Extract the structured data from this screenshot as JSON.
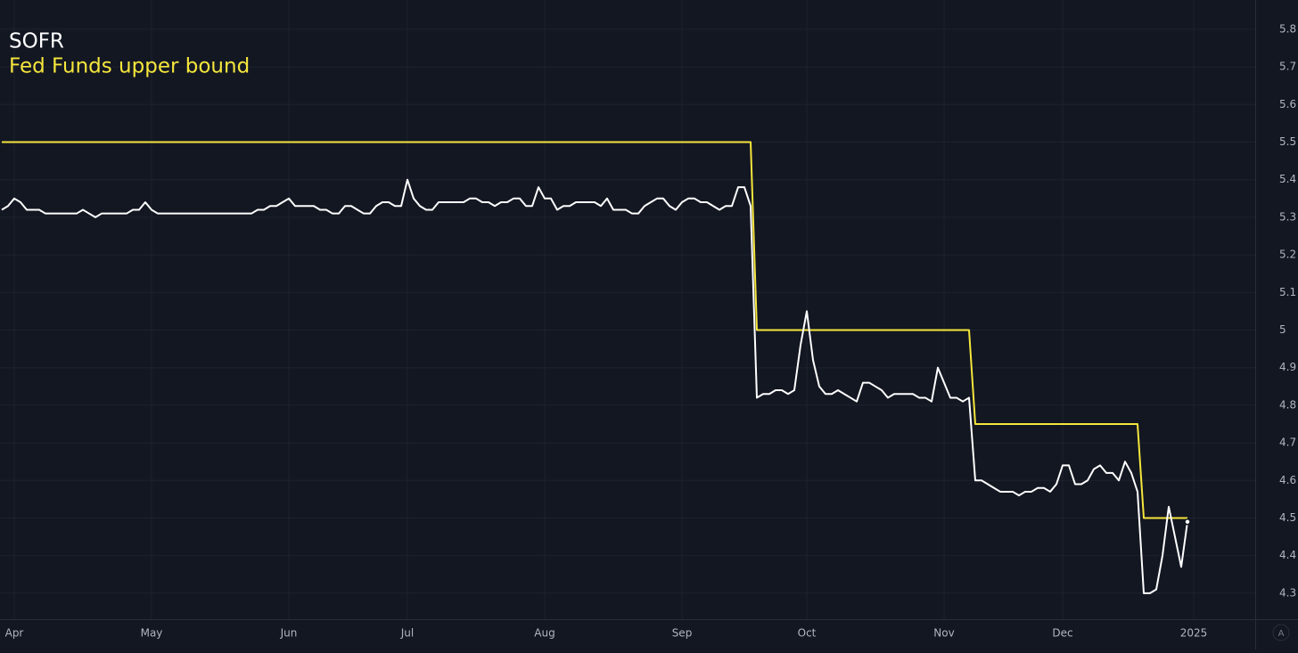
{
  "chart_data": {
    "type": "line",
    "categories": [
      null,
      null,
      "Apr",
      null,
      null,
      null,
      null,
      null,
      null,
      null,
      null,
      null,
      null,
      null,
      null,
      null,
      null,
      null,
      null,
      null,
      null,
      null,
      null,
      null,
      "May",
      null,
      null,
      null,
      null,
      null,
      null,
      null,
      null,
      null,
      null,
      null,
      null,
      null,
      null,
      null,
      null,
      null,
      null,
      null,
      null,
      null,
      "Jun",
      null,
      null,
      null,
      null,
      null,
      null,
      null,
      null,
      null,
      null,
      null,
      null,
      null,
      null,
      null,
      null,
      null,
      null,
      "Jul",
      null,
      null,
      null,
      null,
      null,
      null,
      null,
      null,
      null,
      null,
      null,
      null,
      null,
      null,
      null,
      null,
      null,
      null,
      null,
      null,
      null,
      "Aug",
      null,
      null,
      null,
      null,
      null,
      null,
      null,
      null,
      null,
      null,
      null,
      null,
      null,
      null,
      null,
      null,
      null,
      null,
      null,
      null,
      null,
      "Sep",
      null,
      null,
      null,
      null,
      null,
      null,
      null,
      null,
      null,
      null,
      null,
      null,
      null,
      null,
      null,
      null,
      null,
      null,
      null,
      "Oct",
      null,
      null,
      null,
      null,
      null,
      null,
      null,
      null,
      null,
      null,
      null,
      null,
      null,
      null,
      null,
      null,
      null,
      null,
      null,
      null,
      null,
      "Nov",
      null,
      null,
      null,
      null,
      null,
      null,
      null,
      null,
      null,
      null,
      null,
      null,
      null,
      null,
      null,
      null,
      null,
      null,
      "Dec",
      null,
      null,
      null,
      null,
      null,
      null,
      null,
      null,
      null,
      null,
      null,
      null,
      null,
      null,
      null,
      null,
      null,
      null,
      null,
      null,
      "2025"
    ],
    "series": [
      {
        "name": "SOFR",
        "color": "#ffffff",
        "values": [
          5.32,
          5.33,
          5.35,
          5.34,
          5.32,
          5.32,
          5.32,
          5.31,
          5.31,
          5.31,
          5.31,
          5.31,
          5.31,
          5.32,
          5.31,
          5.3,
          5.31,
          5.31,
          5.31,
          5.31,
          5.31,
          5.32,
          5.32,
          5.34,
          5.32,
          5.31,
          5.31,
          5.31,
          5.31,
          5.31,
          5.31,
          5.31,
          5.31,
          5.31,
          5.31,
          5.31,
          5.31,
          5.31,
          5.31,
          5.31,
          5.31,
          5.32,
          5.32,
          5.33,
          5.33,
          5.34,
          5.35,
          5.33,
          5.33,
          5.33,
          5.33,
          5.32,
          5.32,
          5.31,
          5.31,
          5.33,
          5.33,
          5.32,
          5.31,
          5.31,
          5.33,
          5.34,
          5.34,
          5.33,
          5.33,
          5.4,
          5.35,
          5.33,
          5.32,
          5.32,
          5.34,
          5.34,
          5.34,
          5.34,
          5.34,
          5.35,
          5.35,
          5.34,
          5.34,
          5.33,
          5.34,
          5.34,
          5.35,
          5.35,
          5.33,
          5.33,
          5.38,
          5.35,
          5.35,
          5.32,
          5.33,
          5.33,
          5.34,
          5.34,
          5.34,
          5.34,
          5.33,
          5.35,
          5.32,
          5.32,
          5.32,
          5.31,
          5.31,
          5.33,
          5.34,
          5.35,
          5.35,
          5.33,
          5.32,
          5.34,
          5.35,
          5.35,
          5.34,
          5.34,
          5.33,
          5.32,
          5.33,
          5.33,
          5.38,
          5.38,
          5.33,
          4.82,
          4.83,
          4.83,
          4.84,
          4.84,
          4.83,
          4.84,
          4.96,
          5.05,
          4.92,
          4.85,
          4.83,
          4.83,
          4.84,
          4.83,
          4.82,
          4.81,
          4.86,
          4.86,
          4.85,
          4.84,
          4.82,
          4.83,
          4.83,
          4.83,
          4.83,
          4.82,
          4.82,
          4.81,
          4.9,
          4.86,
          4.82,
          4.82,
          4.81,
          4.82,
          4.6,
          4.6,
          4.59,
          4.58,
          4.57,
          4.57,
          4.57,
          4.56,
          4.57,
          4.57,
          4.58,
          4.58,
          4.57,
          4.59,
          4.64,
          4.64,
          4.59,
          4.59,
          4.6,
          4.63,
          4.64,
          4.62,
          4.62,
          4.6,
          4.65,
          4.62,
          4.57,
          4.3,
          4.3,
          4.31,
          4.4,
          4.53,
          4.45,
          4.37,
          4.49,
          null
        ]
      },
      {
        "name": "Fed Funds upper bound",
        "color": "#f5e63c",
        "values": [
          5.5,
          5.5,
          5.5,
          5.5,
          5.5,
          5.5,
          5.5,
          5.5,
          5.5,
          5.5,
          5.5,
          5.5,
          5.5,
          5.5,
          5.5,
          5.5,
          5.5,
          5.5,
          5.5,
          5.5,
          5.5,
          5.5,
          5.5,
          5.5,
          5.5,
          5.5,
          5.5,
          5.5,
          5.5,
          5.5,
          5.5,
          5.5,
          5.5,
          5.5,
          5.5,
          5.5,
          5.5,
          5.5,
          5.5,
          5.5,
          5.5,
          5.5,
          5.5,
          5.5,
          5.5,
          5.5,
          5.5,
          5.5,
          5.5,
          5.5,
          5.5,
          5.5,
          5.5,
          5.5,
          5.5,
          5.5,
          5.5,
          5.5,
          5.5,
          5.5,
          5.5,
          5.5,
          5.5,
          5.5,
          5.5,
          5.5,
          5.5,
          5.5,
          5.5,
          5.5,
          5.5,
          5.5,
          5.5,
          5.5,
          5.5,
          5.5,
          5.5,
          5.5,
          5.5,
          5.5,
          5.5,
          5.5,
          5.5,
          5.5,
          5.5,
          5.5,
          5.5,
          5.5,
          5.5,
          5.5,
          5.5,
          5.5,
          5.5,
          5.5,
          5.5,
          5.5,
          5.5,
          5.5,
          5.5,
          5.5,
          5.5,
          5.5,
          5.5,
          5.5,
          5.5,
          5.5,
          5.5,
          5.5,
          5.5,
          5.5,
          5.5,
          5.5,
          5.5,
          5.5,
          5.5,
          5.5,
          5.5,
          5.5,
          5.5,
          5.5,
          5.5,
          5,
          5,
          5,
          5,
          5,
          5,
          5,
          5,
          5,
          5,
          5,
          5,
          5,
          5,
          5,
          5,
          5,
          5,
          5,
          5,
          5,
          5,
          5,
          5,
          5,
          5,
          5,
          5,
          5,
          5,
          5,
          5,
          5,
          5,
          5,
          4.75,
          4.75,
          4.75,
          4.75,
          4.75,
          4.75,
          4.75,
          4.75,
          4.75,
          4.75,
          4.75,
          4.75,
          4.75,
          4.75,
          4.75,
          4.75,
          4.75,
          4.75,
          4.75,
          4.75,
          4.75,
          4.75,
          4.75,
          4.75,
          4.75,
          4.75,
          4.75,
          4.5,
          4.5,
          4.5,
          4.5,
          4.5,
          4.5,
          4.5,
          4.5,
          null
        ]
      }
    ],
    "ylim": [
      4.231,
      5.878
    ],
    "yticks": [
      4.3,
      4.4,
      4.5,
      4.6,
      4.7,
      4.8,
      4.9,
      5,
      5.1,
      5.2,
      5.3,
      5.4,
      5.5,
      5.6,
      5.7,
      5.8
    ],
    "grid": true,
    "legend": "top-left",
    "y_axis_side": "right"
  },
  "scale_button": "A"
}
